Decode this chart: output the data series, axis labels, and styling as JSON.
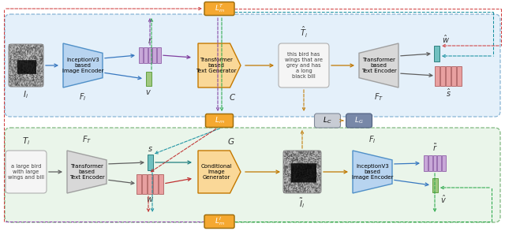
{
  "fig_width": 6.4,
  "fig_height": 2.93,
  "dpi": 100,
  "colors": {
    "blue_trap_face": "#b8d4f0",
    "blue_trap_edge": "#5090c8",
    "gray_trap_face": "#d8d8d8",
    "gray_trap_edge": "#a0a0a0",
    "orange_pent_face": "#fad898",
    "orange_pent_edge": "#c47800",
    "orange_box_face": "#f5a830",
    "orange_box_edge": "#a07010",
    "purple_bar_face": "#c8a8d8",
    "purple_bar_edge": "#9060a8",
    "red_bar_face": "#e8a0a0",
    "red_bar_edge": "#b06060",
    "teal_bar_face": "#70c0c0",
    "teal_bar_edge": "#308080",
    "green_bar_face": "#a0c880",
    "green_bar_edge": "#60a040",
    "gray_cell_face": "#c8ccd4",
    "gray_cell_edge": "#808898",
    "blue_cell_face": "#7888a8",
    "blue_cell_edge": "#506080",
    "light_blue_bg": "#e4f0fa",
    "bg_edge_blue": "#88b4d4",
    "light_green_bg": "#eaf5ea",
    "bg_edge_green": "#80b880",
    "arr_blue": "#3878c0",
    "arr_orange": "#c07800",
    "arr_gray": "#606060",
    "arr_teal": "#208080",
    "arr_red": "#c03030",
    "arr_purple": "#8040a0",
    "dash_red": "#d04040",
    "dash_teal": "#1890a0",
    "dash_green": "#28a848",
    "dash_purple": "#9040b0"
  },
  "labels": {
    "Ii": "$I_i$",
    "FI_top": "$F_I$",
    "r": "$r$",
    "v": "$v$",
    "C": "$C$",
    "Thati": "$\\hat{T}_i$",
    "FT_top": "$F_T$",
    "what": "$\\hat{w}$",
    "shat": "$\\hat{s}$",
    "LmT": "$L_m^T$",
    "Lm": "$L_m$",
    "LC": "$L_C$",
    "LG": "$L_G$",
    "Ti": "$T_i$",
    "FT_bot": "$F_T$",
    "s": "$s$",
    "w": "$w$",
    "G": "$G$",
    "Itildei": "$\\tilde{I}_i$",
    "FI_bot": "$F_I$",
    "rtilde": "$\\tilde{r}$",
    "vhat": "$\\hat{v}$",
    "LmI": "$L_m^I$",
    "enc_top": "InceptionV3\nbased\nImage Encoder",
    "tgen": "Transformer\nbased\nText Generator",
    "tenc_top": "Transformer\nbased\nText Encoder",
    "caption": "this bird has\nwings that are\ngrey and has\na long\nblack bill",
    "text_input": "a large bird\nwith large\nwings and bill",
    "tenc_bot": "Transformer\nbased\nText Encoder",
    "cigen": "Conditional\nImage\nGenerator",
    "enc_bot": "InceptionV3\nbased\nImage Encoder"
  }
}
